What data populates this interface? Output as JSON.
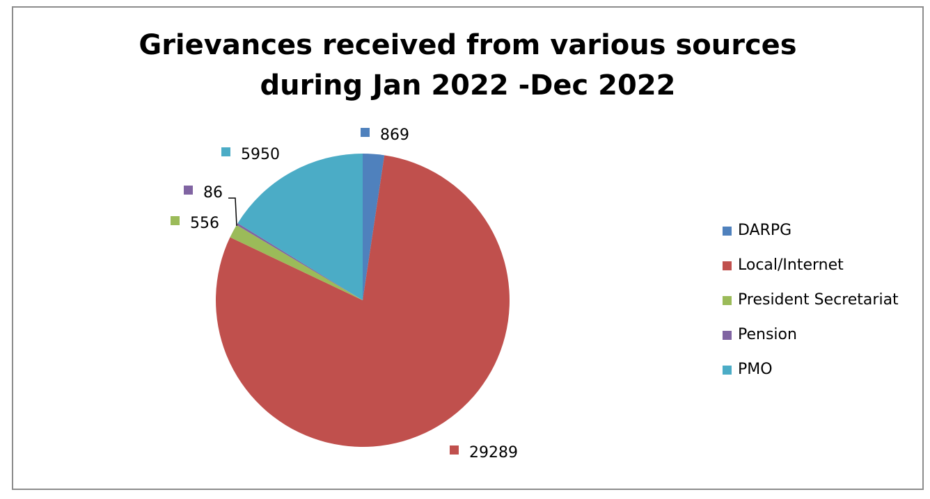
{
  "chart_data": {
    "type": "pie",
    "title_lines": [
      "Grievances received from various sources",
      "during Jan 2022 -Dec 2022"
    ],
    "categories": [
      "DARPG",
      "Local/Internet",
      "President Secretariat",
      "Pension",
      "PMO"
    ],
    "values": [
      869,
      29289,
      556,
      86,
      5950
    ],
    "data_labels": [
      "869",
      "29289",
      "556",
      "86",
      "5950"
    ],
    "colors": [
      "#4F81BD",
      "#C0504D",
      "#9BBB59",
      "#8064A2",
      "#4BACC6"
    ],
    "legend_position": "right",
    "start_angle": "12 o'clock",
    "direction": "clockwise"
  }
}
